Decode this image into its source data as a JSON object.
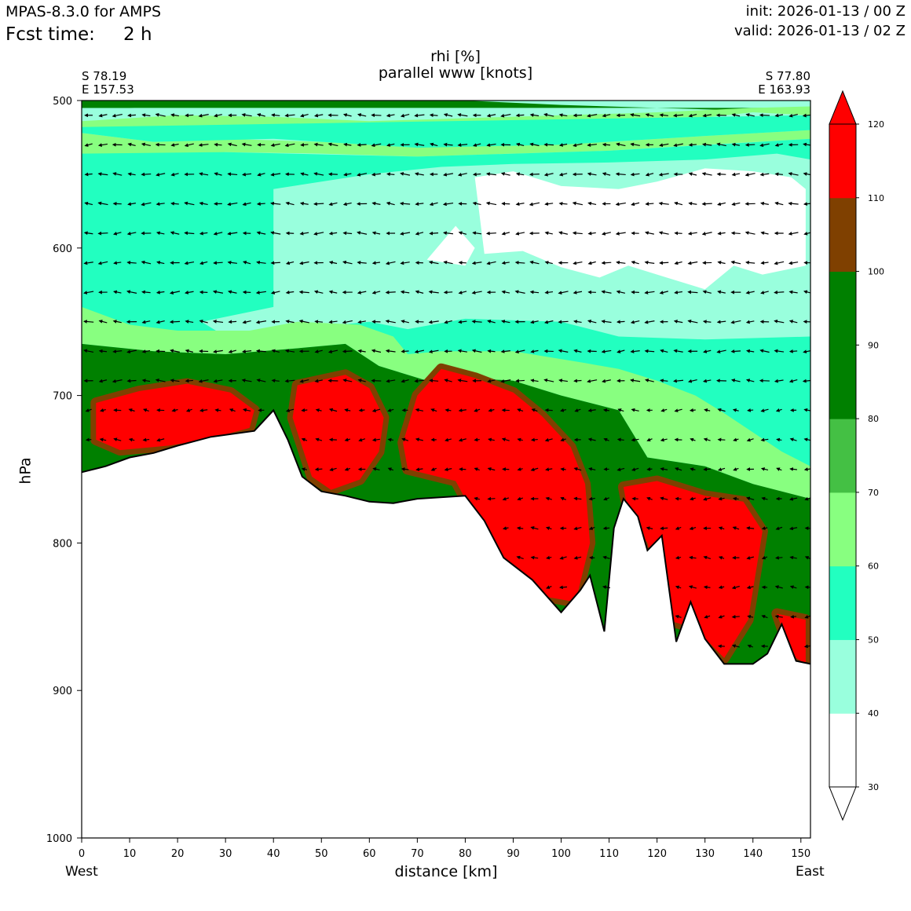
{
  "header": {
    "model": "MPAS-8.3.0 for AMPS",
    "fcst_label": "Fcst time:",
    "fcst_value": "2 h",
    "init": "init: 2026-01-13 / 00 Z",
    "valid": "valid: 2026-01-13 / 02 Z"
  },
  "chart_data": {
    "type": "contourf-cross-section",
    "title": "rhi [%]",
    "subtitle": "parallel www [knots]",
    "left_point": {
      "lat": "S 78.19",
      "lon": "E 157.53"
    },
    "right_point": {
      "lat": "S 77.80",
      "lon": "E 163.93"
    },
    "xlabel": "distance [km]",
    "ylabel": "hPa",
    "x_left_label": "West",
    "x_right_label": "East",
    "xlim": [
      0,
      152
    ],
    "ylim": [
      1000,
      500
    ],
    "xticks": [
      0,
      10,
      20,
      30,
      40,
      50,
      60,
      70,
      80,
      90,
      100,
      110,
      120,
      130,
      140,
      150
    ],
    "yticks": [
      500,
      600,
      700,
      800,
      900,
      1000
    ],
    "colorbar": {
      "levels": [
        30,
        40,
        50,
        60,
        70,
        80,
        90,
        100,
        110,
        120
      ],
      "colors": [
        "#ffffff",
        "#99ffdd",
        "#22ffc0",
        "#88ff80",
        "#44c044",
        "#008000",
        "#008000",
        "#7f4000",
        "#ff0000"
      ],
      "extend": "both",
      "extend_min_color": "#ffffff",
      "extend_max_color": "#ff0000"
    },
    "terrain_surface": [
      [
        0,
        752
      ],
      [
        5,
        748
      ],
      [
        10,
        742
      ],
      [
        15,
        739
      ],
      [
        20,
        734
      ],
      [
        27,
        728
      ],
      [
        36,
        724
      ],
      [
        40,
        710
      ],
      [
        43,
        730
      ],
      [
        46,
        755
      ],
      [
        50,
        765
      ],
      [
        55,
        768
      ],
      [
        60,
        772
      ],
      [
        65,
        773
      ],
      [
        70,
        770
      ],
      [
        80,
        768
      ],
      [
        84,
        785
      ],
      [
        88,
        810
      ],
      [
        94,
        825
      ],
      [
        100,
        847
      ],
      [
        104,
        832
      ],
      [
        106,
        822
      ],
      [
        109,
        860
      ],
      [
        111,
        790
      ],
      [
        113,
        770
      ],
      [
        116,
        782
      ],
      [
        118,
        805
      ],
      [
        121,
        795
      ],
      [
        124,
        867
      ],
      [
        127,
        840
      ],
      [
        130,
        865
      ],
      [
        134,
        882
      ],
      [
        140,
        882
      ],
      [
        143,
        875
      ],
      [
        146,
        855
      ],
      [
        149,
        880
      ],
      [
        152,
        882
      ]
    ],
    "rhi_regions": [
      {
        "rhi_percent": 30,
        "pts": [
          [
            82,
            552
          ],
          [
            90,
            548
          ],
          [
            100,
            558
          ],
          [
            112,
            560
          ],
          [
            120,
            555
          ],
          [
            130,
            546
          ],
          [
            140,
            548
          ],
          [
            148,
            552
          ],
          [
            151,
            560
          ],
          [
            151,
            612
          ],
          [
            142,
            618
          ],
          [
            136,
            612
          ],
          [
            130,
            628
          ],
          [
            122,
            620
          ],
          [
            114,
            612
          ],
          [
            108,
            620
          ],
          [
            100,
            613
          ],
          [
            92,
            602
          ],
          [
            84,
            604
          ]
        ]
      },
      {
        "rhi_percent": 30,
        "pts": [
          [
            72,
            608
          ],
          [
            78,
            585
          ],
          [
            82,
            600
          ],
          [
            80,
            612
          ]
        ]
      },
      {
        "rhi_percent": 110,
        "pts": [
          [
            3,
            705
          ],
          [
            12,
            697
          ],
          [
            22,
            692
          ],
          [
            31,
            698
          ],
          [
            36,
            710
          ],
          [
            35,
            722
          ],
          [
            26,
            730
          ],
          [
            18,
            734
          ],
          [
            8,
            737
          ],
          [
            3,
            730
          ]
        ]
      },
      {
        "rhi_percent": 110,
        "pts": [
          [
            45,
            693
          ],
          [
            55,
            686
          ],
          [
            60,
            695
          ],
          [
            63,
            715
          ],
          [
            62,
            738
          ],
          [
            58,
            757
          ],
          [
            52,
            764
          ],
          [
            48,
            755
          ],
          [
            44,
            715
          ]
        ]
      },
      {
        "rhi_percent": 110,
        "pts": [
          [
            70,
            700
          ],
          [
            75,
            682
          ],
          [
            82,
            688
          ],
          [
            90,
            698
          ],
          [
            96,
            714
          ],
          [
            102,
            735
          ],
          [
            105,
            760
          ],
          [
            106,
            800
          ],
          [
            103,
            840
          ],
          [
            96,
            836
          ],
          [
            86,
            806
          ],
          [
            78,
            758
          ],
          [
            68,
            750
          ],
          [
            67,
            732
          ]
        ]
      },
      {
        "rhi_percent": 110,
        "pts": [
          [
            113,
            762
          ],
          [
            120,
            758
          ],
          [
            130,
            768
          ],
          [
            138,
            772
          ],
          [
            142,
            792
          ],
          [
            139,
            852
          ],
          [
            134,
            878
          ],
          [
            128,
            858
          ],
          [
            122,
            852
          ],
          [
            118,
            800
          ],
          [
            114,
            780
          ]
        ]
      },
      {
        "rhi_percent": 110,
        "pts": [
          [
            145,
            848
          ],
          [
            151,
            852
          ],
          [
            151,
            882
          ],
          [
            148,
            876
          ]
        ]
      }
    ],
    "wind_vectors": "parallel wind arrows on a regular grid (~3 km x ~20 hPa), weak westward flow aloft"
  }
}
